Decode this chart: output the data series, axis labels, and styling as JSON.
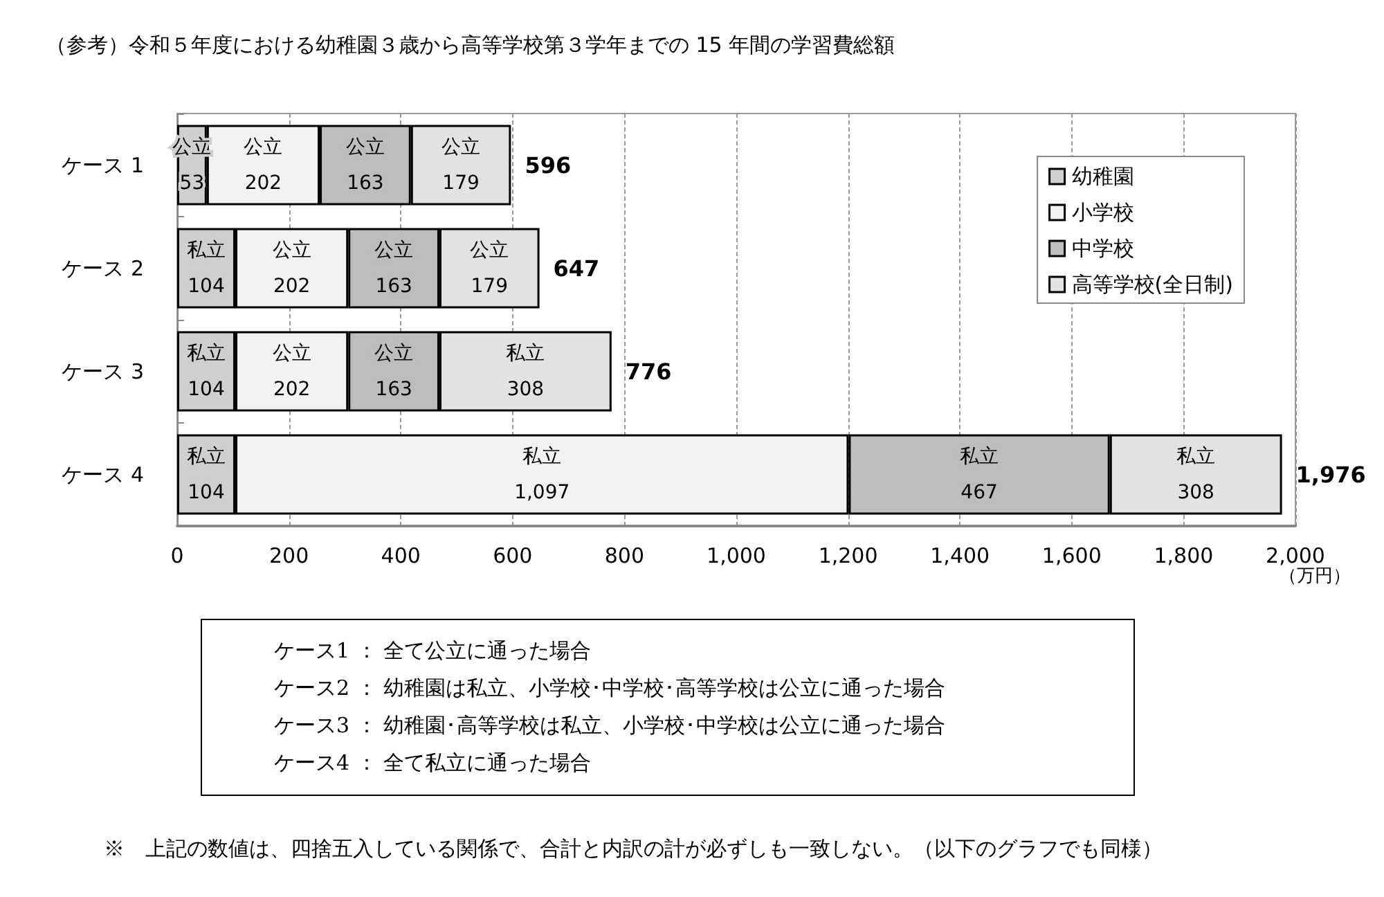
{
  "chart_data": {
    "type": "bar",
    "orientation": "horizontal",
    "stacked": true,
    "title": "（参考）令和５年度における幼稚園３歳から高等学校第３学年までの 15 年間の学習費総額",
    "xlabel": "（万円）",
    "categories": [
      "ケース 1",
      "ケース 2",
      "ケース 3",
      "ケース 4"
    ],
    "series": [
      {
        "name": "幼稚園",
        "color": "#cfcfcf",
        "values": [
          53,
          104,
          104,
          104
        ],
        "value_labels": [
          "公立\n53",
          "私立\n104",
          "私立\n104",
          "私立\n104"
        ]
      },
      {
        "name": "小学校",
        "color": "#f2f2f2",
        "values": [
          202,
          202,
          202,
          1097
        ],
        "value_labels": [
          "公立\n202",
          "公立\n202",
          "公立\n202",
          "私立\n1,097"
        ]
      },
      {
        "name": "中学校",
        "color": "#bdbdbd",
        "values": [
          163,
          163,
          163,
          467
        ],
        "value_labels": [
          "公立\n163",
          "公立\n163",
          "公立\n163",
          "私立\n467"
        ]
      },
      {
        "name": "高等学校(全日制)",
        "color": "#e2e2e2",
        "values": [
          179,
          179,
          308,
          308
        ],
        "value_labels": [
          "公立\n179",
          "公立\n179",
          "私立\n308",
          "私立\n308"
        ]
      }
    ],
    "totals": [
      "596",
      "647",
      "776",
      "1,976"
    ],
    "xlim": [
      0,
      2000
    ],
    "xticks": [
      0,
      200,
      400,
      600,
      800,
      {
        "value": 1000,
        "label": "1,000"
      },
      {
        "value": 1200,
        "label": "1,200"
      },
      {
        "value": 1400,
        "label": "1,400"
      },
      {
        "value": 1600,
        "label": "1,600"
      },
      {
        "value": 1800,
        "label": "1,800"
      },
      {
        "value": 2000,
        "label": "2,000"
      }
    ],
    "grid": "x",
    "legend": "top right",
    "annotations": [
      "ケース1 ： 全て公立に通った場合",
      "ケース2 ： 幼稚園は私立、小学校･中学校･高等学校は公立に通った場合",
      "ケース3 ： 幼稚園･高等学校は私立、小学校･中学校は公立に通った場合",
      "ケース4 ： 全て私立に通った場合",
      "※　上記の数値は、四捨五入している関係で、合計と内訳の計が必ずしも一致しない。（以下のグラフでも同様）"
    ]
  }
}
